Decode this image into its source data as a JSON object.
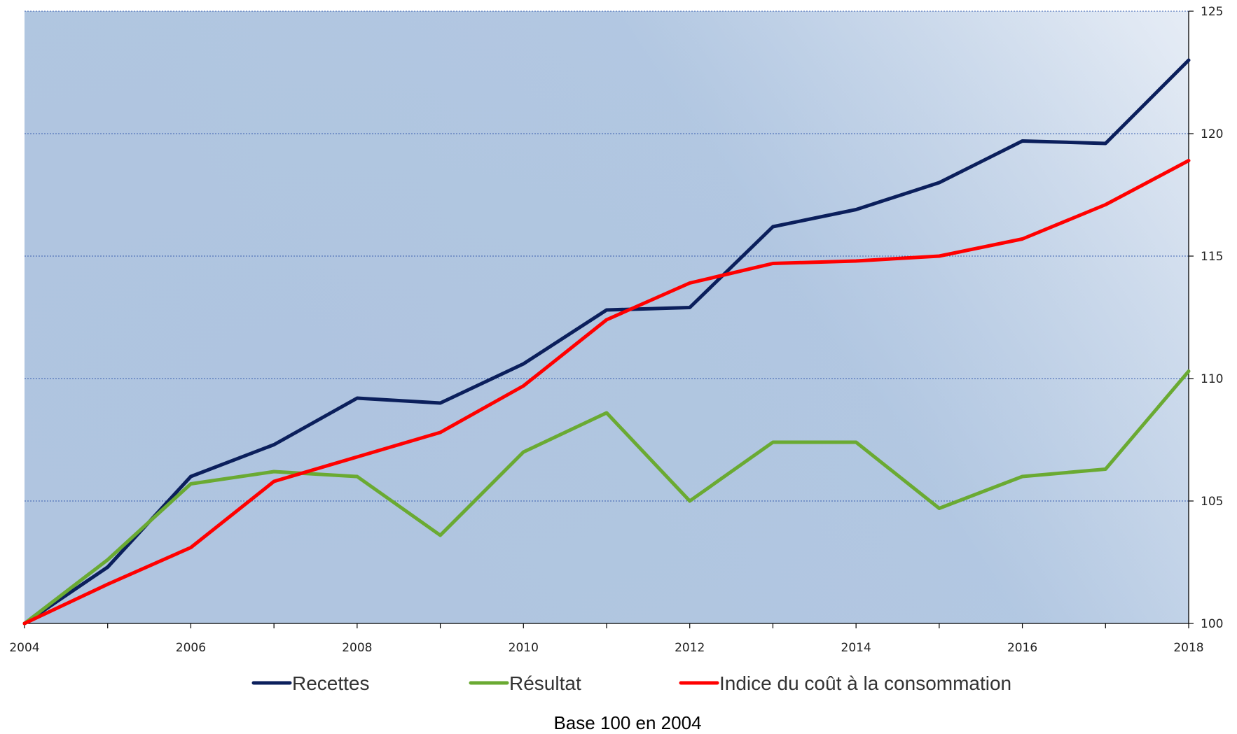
{
  "chart_data": {
    "type": "line",
    "x": [
      2004,
      2005,
      2006,
      2007,
      2008,
      2009,
      2010,
      2011,
      2012,
      2013,
      2014,
      2015,
      2016,
      2017,
      2018
    ],
    "x_tick_labels": [
      "2004",
      "2006",
      "2008",
      "2010",
      "2012",
      "2014",
      "2016",
      "2018"
    ],
    "xlim": [
      2004,
      2018
    ],
    "ylim": [
      100,
      125
    ],
    "y_tick_labels": [
      "100",
      "105",
      "110",
      "115",
      "120",
      "125"
    ],
    "y_axis_side": "right",
    "grid": "horizontal dotted",
    "legend_position": "bottom",
    "series": [
      {
        "name": "Recettes",
        "color": "#0b1f5c",
        "values": [
          100,
          102.3,
          106,
          107.3,
          109.2,
          109,
          110.6,
          112.8,
          112.9,
          116.2,
          116.9,
          118,
          119.7,
          119.6,
          123
        ]
      },
      {
        "name": "Résultat",
        "color": "#6aaa32",
        "values": [
          100,
          102.6,
          105.7,
          106.2,
          106,
          103.6,
          107,
          108.6,
          105,
          107.4,
          107.4,
          104.7,
          106,
          106.3,
          110.3
        ]
      },
      {
        "name": "Indice du coût à la consommation",
        "color": "#ff0000",
        "values": [
          100,
          101.6,
          103.1,
          105.8,
          106.8,
          107.8,
          109.7,
          112.4,
          113.9,
          114.7,
          114.8,
          115,
          115.7,
          117.1,
          118.9
        ]
      }
    ],
    "caption": "Base 100 en 2004"
  }
}
